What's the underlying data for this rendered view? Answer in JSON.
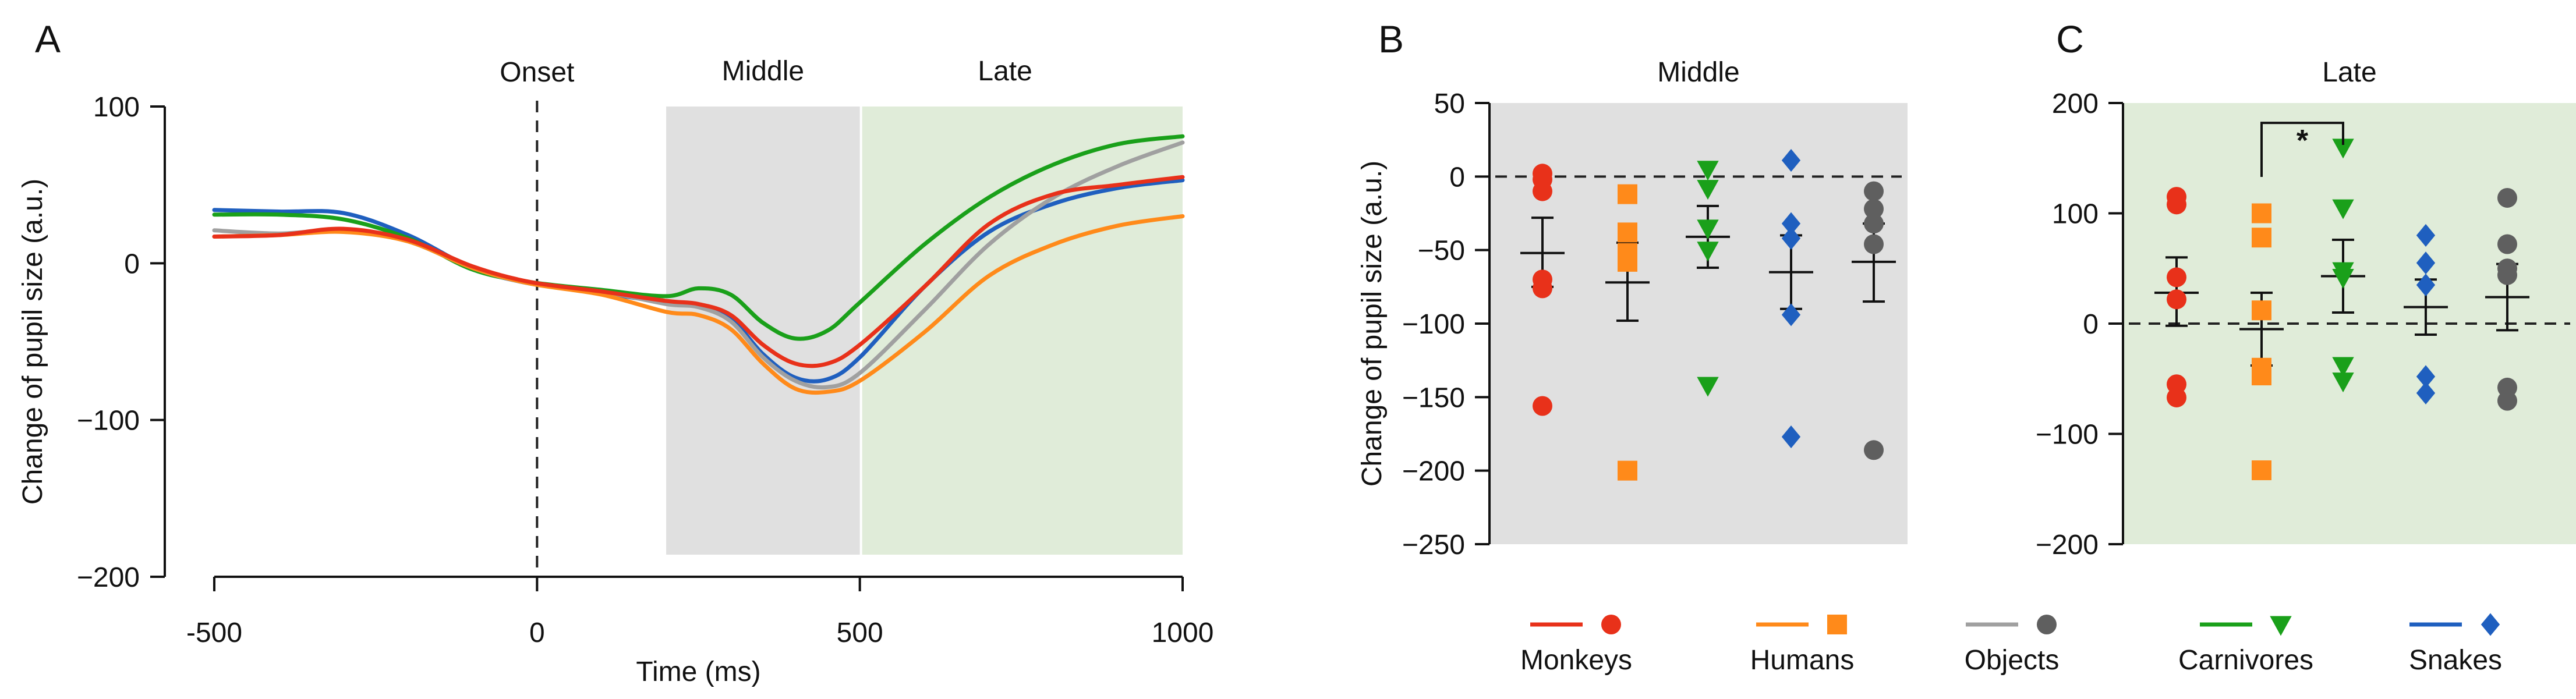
{
  "chart_data": [
    {
      "panel_label": "A",
      "type": "line",
      "xlabel": "Time (ms)",
      "ylabel": "Change of pupil size (a.u.)",
      "xlim": [
        -500,
        1000
      ],
      "ylim": [
        -200,
        100
      ],
      "xticks": [
        "-500",
        "0",
        "500",
        "1000"
      ],
      "yticks": [
        "100",
        "0",
        "−100",
        "−200"
      ],
      "annotations": {
        "onset": "Onset",
        "middle": "Middle",
        "late": "Late"
      },
      "windows": {
        "middle": [
          200,
          500
        ],
        "late": [
          500,
          1000
        ]
      },
      "series": [
        {
          "name": "Snakes",
          "color": "#1f5fbf",
          "x": [
            -500,
            -400,
            -300,
            -200,
            -100,
            -10,
            100,
            200,
            250,
            300,
            350,
            400,
            450,
            500,
            600,
            700,
            800,
            900,
            1000
          ],
          "y": [
            34,
            33,
            32,
            18,
            -3,
            -13,
            -19,
            -25,
            -27,
            -35,
            -58,
            -73,
            -74,
            -60,
            -15,
            20,
            38,
            48,
            53
          ]
        },
        {
          "name": "Carnivores",
          "color": "#1aa01a",
          "x": [
            -500,
            -400,
            -300,
            -200,
            -100,
            -10,
            100,
            200,
            250,
            300,
            350,
            400,
            450,
            500,
            600,
            700,
            800,
            900,
            1000
          ],
          "y": [
            31,
            31,
            28,
            16,
            -4,
            -12,
            -17,
            -21,
            -16,
            -20,
            -38,
            -48,
            -43,
            -25,
            12,
            42,
            63,
            76,
            81
          ]
        },
        {
          "name": "Objects",
          "color": "#a0a0a0",
          "x": [
            -500,
            -400,
            -300,
            -200,
            -100,
            -10,
            100,
            200,
            250,
            300,
            350,
            400,
            450,
            500,
            600,
            700,
            800,
            900,
            1000
          ],
          "y": [
            21,
            19,
            21,
            14,
            -3,
            -13,
            -18,
            -26,
            -28,
            -37,
            -60,
            -75,
            -79,
            -70,
            -30,
            12,
            42,
            62,
            77
          ]
        },
        {
          "name": "Humans",
          "color": "#ff8a1a",
          "x": [
            -500,
            -400,
            -300,
            -200,
            -100,
            -10,
            100,
            200,
            250,
            300,
            350,
            400,
            450,
            500,
            600,
            700,
            800,
            900,
            1000
          ],
          "y": [
            17,
            18,
            20,
            14,
            -3,
            -13,
            -20,
            -31,
            -33,
            -42,
            -64,
            -80,
            -82,
            -75,
            -44,
            -8,
            12,
            24,
            30
          ]
        },
        {
          "name": "Monkeys",
          "color": "#e8311a",
          "x": [
            -500,
            -400,
            -300,
            -200,
            -100,
            -10,
            100,
            200,
            250,
            300,
            350,
            400,
            450,
            500,
            600,
            700,
            800,
            900,
            1000
          ],
          "y": [
            17,
            18,
            22,
            15,
            -2,
            -12,
            -18,
            -24,
            -26,
            -33,
            -52,
            -64,
            -64,
            -52,
            -15,
            25,
            44,
            50,
            55
          ]
        }
      ]
    },
    {
      "panel_label": "B",
      "type": "scatter",
      "title": "Middle",
      "ylabel": "Change of pupil size (a.u.)",
      "ylim": [
        -250,
        50
      ],
      "yticks": [
        "50",
        "0",
        "−50",
        "−100",
        "−150",
        "−200",
        "−250"
      ],
      "series": [
        {
          "name": "Monkeys",
          "color": "#e8311a",
          "marker": "circle",
          "values": [
            2,
            -2,
            -10,
            -70,
            -76,
            -156
          ],
          "mean": -52,
          "sem_low": -75,
          "sem_high": -28
        },
        {
          "name": "Humans",
          "color": "#ff8a1a",
          "marker": "square",
          "values": [
            -12,
            -38,
            -52,
            -58,
            -200
          ],
          "mean": -72,
          "sem_low": -98,
          "sem_high": -45
        },
        {
          "name": "Carnivores",
          "color": "#1aa01a",
          "marker": "triangle-down",
          "values": [
            5,
            -8,
            -35,
            -50,
            -142
          ],
          "mean": -41,
          "sem_low": -62,
          "sem_high": -20
        },
        {
          "name": "Snakes",
          "color": "#1f5fbf",
          "marker": "diamond",
          "values": [
            11,
            -32,
            -42,
            -94,
            -177
          ],
          "mean": -65,
          "sem_low": -90,
          "sem_high": -40
        },
        {
          "name": "Objects",
          "color": "#5f5f5f",
          "marker": "circle",
          "values": [
            -10,
            -22,
            -32,
            -46,
            -186
          ],
          "mean": -58,
          "sem_low": -85,
          "sem_high": -32
        }
      ]
    },
    {
      "panel_label": "C",
      "type": "scatter",
      "title": "Late",
      "ylim": [
        -200,
        200
      ],
      "yticks": [
        "200",
        "100",
        "0",
        "−100",
        "−200"
      ],
      "significance": "*",
      "series": [
        {
          "name": "Monkeys",
          "color": "#e8311a",
          "marker": "circle",
          "values": [
            115,
            108,
            42,
            22,
            -55,
            -67
          ],
          "mean": 28,
          "sem_low": -2,
          "sem_high": 60
        },
        {
          "name": "Humans",
          "color": "#ff8a1a",
          "marker": "square",
          "values": [
            100,
            78,
            12,
            -40,
            -47,
            -133
          ],
          "mean": -5,
          "sem_low": -38,
          "sem_high": 28
        },
        {
          "name": "Carnivores",
          "color": "#1aa01a",
          "marker": "triangle-down",
          "values": [
            160,
            105,
            48,
            42,
            -38,
            -52
          ],
          "mean": 43,
          "sem_low": 10,
          "sem_high": 76
        },
        {
          "name": "Snakes",
          "color": "#1f5fbf",
          "marker": "diamond",
          "values": [
            80,
            55,
            35,
            -48,
            -63
          ],
          "mean": 15,
          "sem_low": -10,
          "sem_high": 40
        },
        {
          "name": "Objects",
          "color": "#5f5f5f",
          "marker": "circle",
          "values": [
            114,
            72,
            50,
            44,
            -58,
            -70
          ],
          "mean": 24,
          "sem_low": -6,
          "sem_high": 54
        }
      ]
    }
  ],
  "legend": [
    {
      "name": "Monkeys",
      "color": "#e8311a",
      "marker": "circle"
    },
    {
      "name": "Humans",
      "color": "#ff8a1a",
      "marker": "square"
    },
    {
      "name": "Objects",
      "color": "#a0a0a0",
      "marker_color": "#5f5f5f",
      "marker": "circle"
    },
    {
      "name": "Carnivores",
      "color": "#1aa01a",
      "marker": "triangle-down"
    },
    {
      "name": "Snakes",
      "color": "#1f5fbf",
      "marker": "diamond"
    }
  ],
  "colors": {
    "middle_window": "#e0e0e0",
    "late_window": "#e0ecd9"
  }
}
